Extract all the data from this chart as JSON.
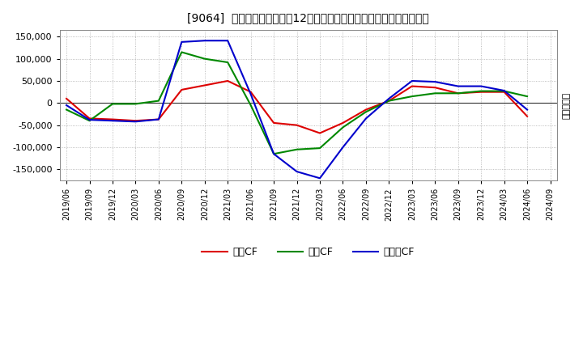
{
  "title": "[9064]  キャッシュフローの12か月移動合計の対前年同期増減額の推移",
  "ylabel": "（百万円）",
  "background_color": "#ffffff",
  "plot_background": "#ffffff",
  "grid_color": "#aaaaaa",
  "ylim": [
    -175000,
    165000
  ],
  "yticks": [
    -150000,
    -100000,
    -50000,
    0,
    50000,
    100000,
    150000
  ],
  "x_labels": [
    "2019/06",
    "2019/09",
    "2019/12",
    "2020/03",
    "2020/06",
    "2020/09",
    "2020/12",
    "2021/03",
    "2021/06",
    "2021/09",
    "2021/12",
    "2022/03",
    "2022/06",
    "2022/09",
    "2022/12",
    "2023/03",
    "2023/06",
    "2023/09",
    "2023/12",
    "2024/03",
    "2024/06",
    "2024/09"
  ],
  "operating_cf": [
    10000,
    -35000,
    -37000,
    -40000,
    -37000,
    30000,
    40000,
    50000,
    25000,
    -45000,
    -50000,
    -68000,
    -45000,
    -15000,
    5000,
    38000,
    35000,
    22000,
    25000,
    25000,
    -30000,
    null
  ],
  "investing_cf": [
    -15000,
    -40000,
    -2000,
    -2000,
    5000,
    115000,
    100000,
    92000,
    -5000,
    -115000,
    -105000,
    -102000,
    -55000,
    -20000,
    5000,
    15000,
    22000,
    22000,
    27000,
    27000,
    15000,
    null
  ],
  "free_cf": [
    -5000,
    -38000,
    -40000,
    -42000,
    -37000,
    138000,
    141000,
    141000,
    20000,
    -115000,
    -155000,
    -170000,
    -100000,
    -35000,
    10000,
    50000,
    48000,
    38000,
    38000,
    28000,
    -15000,
    null
  ],
  "operating_color": "#dd0000",
  "investing_color": "#008800",
  "free_color": "#0000cc",
  "legend_labels": [
    "営業CF",
    "投資CF",
    "フリーCF"
  ]
}
